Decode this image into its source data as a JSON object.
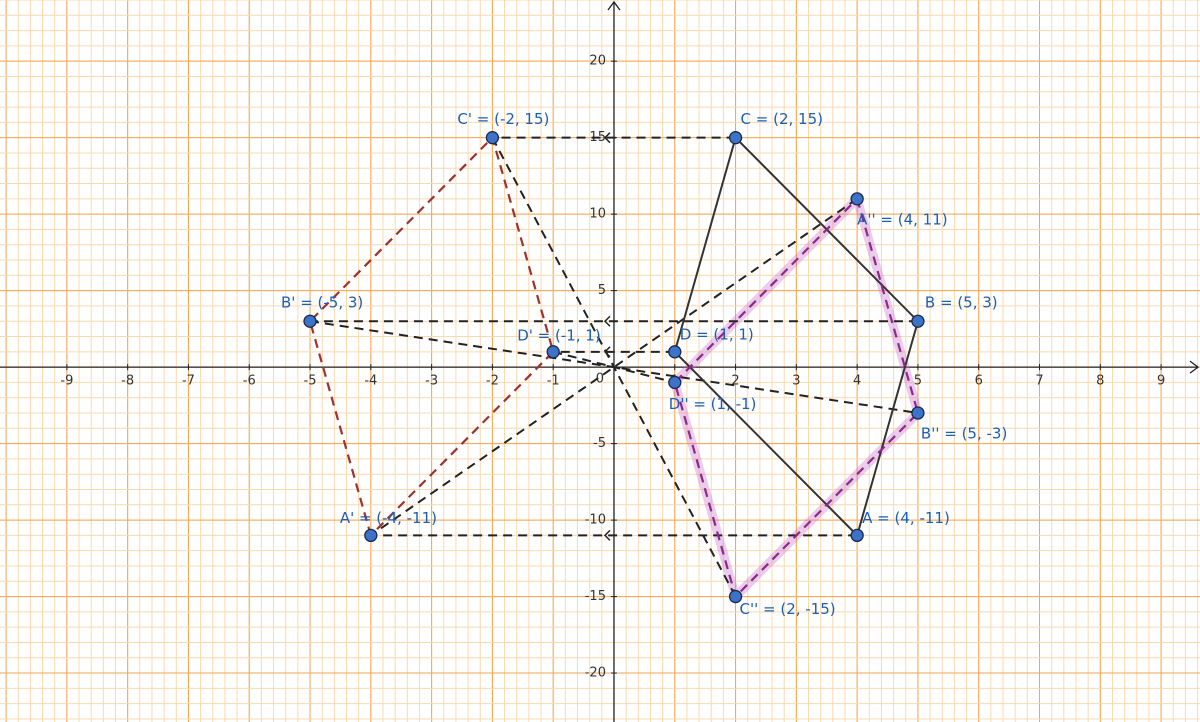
{
  "graph": {
    "xlim": [
      -10.1,
      9.64
    ],
    "ylim": [
      -23.2,
      24.0
    ],
    "xticks": [
      -9,
      -8,
      -7,
      -6,
      -5,
      -4,
      -3,
      -2,
      -1,
      0,
      1,
      2,
      3,
      4,
      5,
      6,
      7,
      8,
      9
    ],
    "yticks": [
      -20,
      -15,
      -10,
      -5,
      5,
      10,
      15,
      20
    ],
    "points": [
      {
        "label": "A = (4, -11)",
        "x": 4,
        "y": -11
      },
      {
        "label": "B = (5, 3)",
        "x": 5,
        "y": 3
      },
      {
        "label": "C = (2, 15)",
        "x": 2,
        "y": 15
      },
      {
        "label": "D = (1, 1)",
        "x": 1,
        "y": 1
      },
      {
        "label": "A' = (-4, -11)",
        "x": -4,
        "y": -11
      },
      {
        "label": "B' = (-5, 3)",
        "x": -5,
        "y": 3
      },
      {
        "label": "C' = (-2, 15)",
        "x": -2,
        "y": 15
      },
      {
        "label": "D' = (-1, 1)",
        "x": -1,
        "y": 1
      },
      {
        "label": "A'' = (4, 11)",
        "x": 4,
        "y": 11
      },
      {
        "label": "B'' = (5, -3)",
        "x": 5,
        "y": -3
      },
      {
        "label": "C'' = (2, -15)",
        "x": 2,
        "y": -15
      },
      {
        "label": "D'' = (1, -1)",
        "x": 1,
        "y": -1
      }
    ]
  }
}
